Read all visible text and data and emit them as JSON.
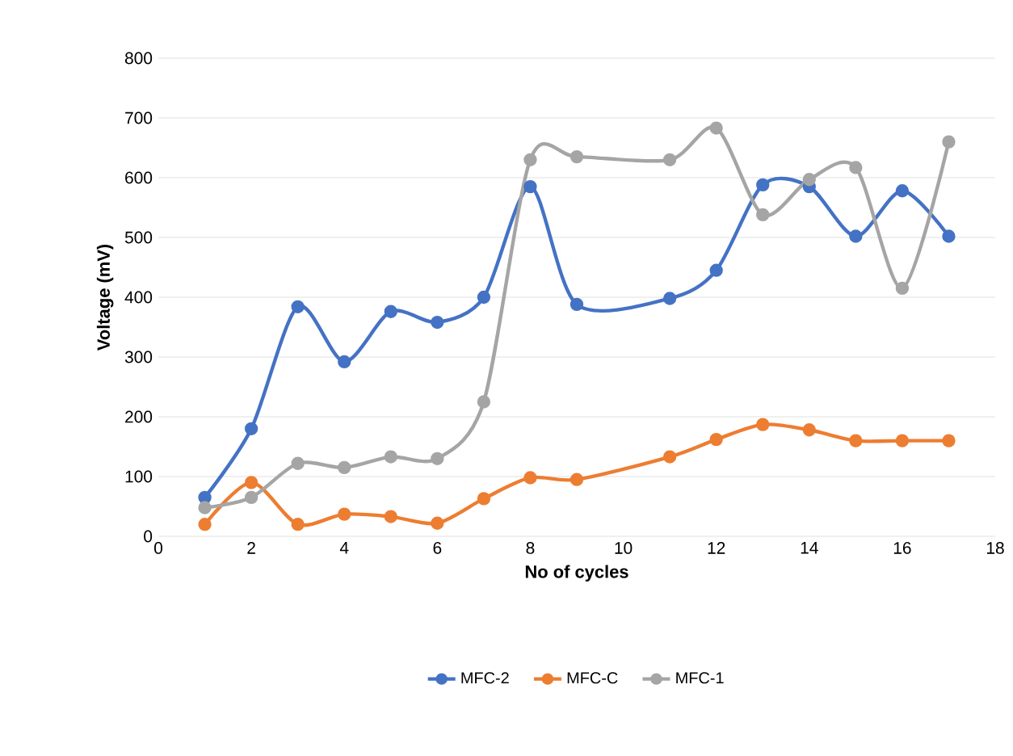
{
  "chart_data": {
    "type": "line",
    "xlabel": "No of cycles",
    "ylabel": "Voltage (mV)",
    "x": [
      1,
      2,
      3,
      4,
      5,
      6,
      7,
      8,
      9,
      11,
      12,
      13,
      14,
      15,
      16,
      17
    ],
    "series": [
      {
        "name": "MFC-2",
        "color": "#4472c4",
        "values": [
          65,
          180,
          384,
          292,
          376,
          358,
          400,
          585,
          388,
          398,
          445,
          588,
          585,
          502,
          578,
          502
        ]
      },
      {
        "name": "MFC-C",
        "color": "#ed7d31",
        "values": [
          20,
          90,
          20,
          37,
          33,
          22,
          63,
          98,
          95,
          133,
          162,
          187,
          178,
          160,
          160,
          160
        ]
      },
      {
        "name": "MFC-1",
        "color": "#a5a5a5",
        "values": [
          48,
          65,
          122,
          115,
          133,
          130,
          225,
          630,
          635,
          630,
          683,
          538,
          597,
          617,
          415,
          660
        ]
      }
    ],
    "xlim": [
      0,
      18
    ],
    "xticks": [
      0,
      2,
      4,
      6,
      8,
      10,
      12,
      14,
      16,
      18
    ],
    "ylim": [
      0,
      800
    ],
    "yticks": [
      0,
      100,
      200,
      300,
      400,
      500,
      600,
      700,
      800
    ],
    "grid": "y",
    "legend": "bottom",
    "marker": "circle",
    "line_style": "solid"
  }
}
